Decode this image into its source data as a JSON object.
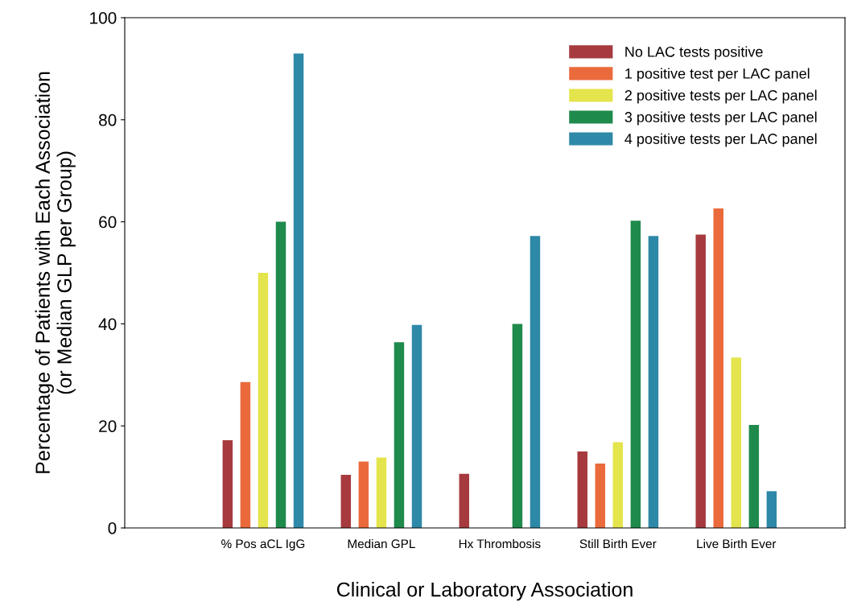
{
  "chart_data": {
    "type": "bar",
    "xlabel": "Clinical or Laboratory Association",
    "ylabel": "Percentage of Patients with Each Association\n(or Median GLP per Group)",
    "categories": [
      "% Pos aCL IgG",
      "Median GPL",
      "Hx Thrombosis",
      "Still Birth Ever",
      "Live Birth Ever"
    ],
    "series": [
      {
        "name": "No LAC tests positive",
        "color": "#a63a3e",
        "values": [
          17.2,
          10.4,
          10.6,
          15,
          57.5
        ]
      },
      {
        "name": "1 positive test per LAC panel",
        "color": "#ea6a3c",
        "values": [
          28.6,
          13,
          0,
          12.6,
          62.6
        ]
      },
      {
        "name": "2 positive tests per LAC panel",
        "color": "#e4e44c",
        "values": [
          50,
          13.8,
          0,
          16.8,
          33.4
        ]
      },
      {
        "name": "3 positive tests per LAC panel",
        "color": "#1e8a4c",
        "values": [
          60,
          36.4,
          40,
          60.2,
          20.2
        ]
      },
      {
        "name": "4 positive tests per LAC panel",
        "color": "#2e88a8",
        "values": [
          93,
          39.8,
          57.2,
          57.2,
          7.2
        ]
      }
    ],
    "ylim": [
      0,
      100
    ],
    "yticks": [
      0,
      20,
      40,
      60,
      80,
      100
    ],
    "grid": false,
    "legend": "top right"
  }
}
